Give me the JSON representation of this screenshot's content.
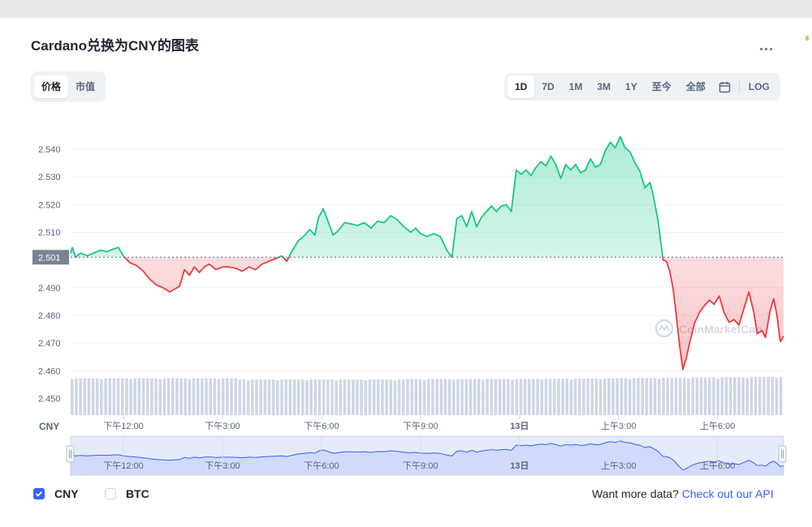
{
  "title": "Cardano兑换为CNY的图表",
  "more_label": "...",
  "view_tabs": [
    {
      "label": "价格",
      "active": true
    },
    {
      "label": "市值",
      "active": false
    }
  ],
  "range_tabs": [
    {
      "label": "1D",
      "active": true
    },
    {
      "label": "7D",
      "active": false
    },
    {
      "label": "1M",
      "active": false
    },
    {
      "label": "3M",
      "active": false
    },
    {
      "label": "1Y",
      "active": false
    },
    {
      "label": "至今",
      "active": false
    },
    {
      "label": "全部",
      "active": false
    }
  ],
  "calendar_icon": "calendar-icon",
  "log_label": "LOG",
  "legend": [
    {
      "label": "CNY",
      "checked": true
    },
    {
      "label": "BTC",
      "checked": false
    }
  ],
  "api_text": "Want more data?",
  "api_link": "Check out our API",
  "watermark": "CoinMarketCap",
  "colors": {
    "up": "#16c784",
    "down": "#ea3943",
    "accent": "#3861fb",
    "volume": "#cfd6e4",
    "navigator": "#3861fb"
  },
  "chart_data": {
    "type": "line",
    "currency_label": "CNY",
    "baseline": 2.501,
    "baseline_label": "2.501",
    "ylim": [
      2.444,
      2.5485
    ],
    "yticks": [
      2.45,
      2.46,
      2.47,
      2.48,
      2.49,
      2.5,
      2.51,
      2.52,
      2.53,
      2.54
    ],
    "ytick_labels": [
      "2.450",
      "2.460",
      "2.470",
      "2.480",
      "2.490",
      "2.500",
      "2.510",
      "2.520",
      "2.530",
      "2.540"
    ],
    "x_hours": [
      0,
      4,
      8,
      12,
      16,
      20,
      24
    ],
    "x_labels": [
      "下午12:00",
      "下午3:00",
      "下午6:00",
      "下午9:00",
      "13日",
      "上午3:00",
      "上午6:00"
    ],
    "xtick_hours": [
      1.6,
      4.6,
      7.6,
      10.6,
      13.6,
      16.6,
      19.6
    ],
    "price_points": [
      [
        0.0,
        2.5025
      ],
      [
        0.05,
        2.5045
      ],
      [
        0.15,
        2.501
      ],
      [
        0.3,
        2.5025
      ],
      [
        0.5,
        2.5015
      ],
      [
        0.7,
        2.5025
      ],
      [
        0.9,
        2.5035
      ],
      [
        1.1,
        2.503
      ],
      [
        1.3,
        2.504
      ],
      [
        1.45,
        2.5045
      ],
      [
        1.6,
        2.5015
      ],
      [
        1.8,
        2.499
      ],
      [
        2.0,
        2.498
      ],
      [
        2.2,
        2.496
      ],
      [
        2.4,
        2.493
      ],
      [
        2.6,
        2.491
      ],
      [
        2.8,
        2.49
      ],
      [
        3.0,
        2.4885
      ],
      [
        3.15,
        2.4895
      ],
      [
        3.3,
        2.4905
      ],
      [
        3.45,
        2.4965
      ],
      [
        3.6,
        2.4945
      ],
      [
        3.75,
        2.4975
      ],
      [
        3.9,
        2.4955
      ],
      [
        4.05,
        2.4975
      ],
      [
        4.2,
        2.4985
      ],
      [
        4.4,
        2.4965
      ],
      [
        4.6,
        2.4975
      ],
      [
        4.8,
        2.4975
      ],
      [
        5.0,
        2.497
      ],
      [
        5.2,
        2.496
      ],
      [
        5.4,
        2.4975
      ],
      [
        5.6,
        2.4965
      ],
      [
        5.8,
        2.4985
      ],
      [
        6.0,
        2.4995
      ],
      [
        6.2,
        2.5005
      ],
      [
        6.4,
        2.5015
      ],
      [
        6.55,
        2.4995
      ],
      [
        6.7,
        2.503
      ],
      [
        6.9,
        2.507
      ],
      [
        7.1,
        2.509
      ],
      [
        7.25,
        2.511
      ],
      [
        7.4,
        2.509
      ],
      [
        7.5,
        2.515
      ],
      [
        7.65,
        2.5185
      ],
      [
        7.8,
        2.514
      ],
      [
        7.95,
        2.509
      ],
      [
        8.1,
        2.5105
      ],
      [
        8.3,
        2.5135
      ],
      [
        8.5,
        2.513
      ],
      [
        8.7,
        2.5125
      ],
      [
        8.9,
        2.5135
      ],
      [
        9.1,
        2.5115
      ],
      [
        9.3,
        2.514
      ],
      [
        9.5,
        2.5135
      ],
      [
        9.7,
        2.516
      ],
      [
        9.9,
        2.5145
      ],
      [
        10.1,
        2.512
      ],
      [
        10.3,
        2.51
      ],
      [
        10.45,
        2.5115
      ],
      [
        10.6,
        2.5095
      ],
      [
        10.8,
        2.5085
      ],
      [
        11.0,
        2.5095
      ],
      [
        11.2,
        2.5085
      ],
      [
        11.4,
        2.5035
      ],
      [
        11.55,
        2.501
      ],
      [
        11.7,
        2.515
      ],
      [
        11.85,
        2.516
      ],
      [
        12.0,
        2.512
      ],
      [
        12.15,
        2.5175
      ],
      [
        12.3,
        2.512
      ],
      [
        12.45,
        2.5155
      ],
      [
        12.6,
        2.5175
      ],
      [
        12.75,
        2.5195
      ],
      [
        12.9,
        2.5175
      ],
      [
        13.05,
        2.5195
      ],
      [
        13.2,
        2.52
      ],
      [
        13.35,
        2.5175
      ],
      [
        13.5,
        2.5325
      ],
      [
        13.65,
        2.531
      ],
      [
        13.8,
        2.5325
      ],
      [
        13.95,
        2.5305
      ],
      [
        14.1,
        2.5335
      ],
      [
        14.25,
        2.5355
      ],
      [
        14.4,
        2.534
      ],
      [
        14.55,
        2.5375
      ],
      [
        14.7,
        2.5345
      ],
      [
        14.85,
        2.5295
      ],
      [
        15.0,
        2.5345
      ],
      [
        15.15,
        2.5325
      ],
      [
        15.3,
        2.5345
      ],
      [
        15.45,
        2.5315
      ],
      [
        15.6,
        2.5325
      ],
      [
        15.75,
        2.5365
      ],
      [
        15.9,
        2.5335
      ],
      [
        16.05,
        2.5345
      ],
      [
        16.2,
        2.5395
      ],
      [
        16.35,
        2.5425
      ],
      [
        16.5,
        2.5405
      ],
      [
        16.65,
        2.5445
      ],
      [
        16.8,
        2.5405
      ],
      [
        16.95,
        2.539
      ],
      [
        17.1,
        2.535
      ],
      [
        17.25,
        2.532
      ],
      [
        17.4,
        2.526
      ],
      [
        17.55,
        2.528
      ],
      [
        17.65,
        2.5235
      ],
      [
        17.8,
        2.514
      ],
      [
        17.95,
        2.5
      ],
      [
        18.05,
        2.4995
      ],
      [
        18.15,
        2.496
      ],
      [
        18.25,
        2.49
      ],
      [
        18.35,
        2.48
      ],
      [
        18.45,
        2.469
      ],
      [
        18.55,
        2.4605
      ],
      [
        18.65,
        2.4645
      ],
      [
        18.75,
        2.47
      ],
      [
        18.9,
        2.477
      ],
      [
        19.05,
        2.481
      ],
      [
        19.2,
        2.4835
      ],
      [
        19.35,
        2.4855
      ],
      [
        19.5,
        2.484
      ],
      [
        19.65,
        2.487
      ],
      [
        19.8,
        2.481
      ],
      [
        19.95,
        2.4775
      ],
      [
        20.1,
        2.4785
      ],
      [
        20.25,
        2.4765
      ],
      [
        20.4,
        2.4825
      ],
      [
        20.55,
        2.4885
      ],
      [
        20.7,
        2.481
      ],
      [
        20.8,
        2.4735
      ],
      [
        20.95,
        2.4745
      ],
      [
        21.05,
        2.472
      ],
      [
        21.2,
        2.482
      ],
      [
        21.3,
        2.486
      ],
      [
        21.4,
        2.48
      ],
      [
        21.5,
        2.4705
      ],
      [
        21.6,
        2.4725
      ]
    ],
    "volume": {
      "ylim": [
        2.444,
        2.4575
      ],
      "level": 2.4573
    },
    "navigator_labels": [
      "下午12:00",
      "下午3:00",
      "下午6:00",
      "下午9:00",
      "13日",
      "上午3:00",
      "上午6:00"
    ]
  }
}
